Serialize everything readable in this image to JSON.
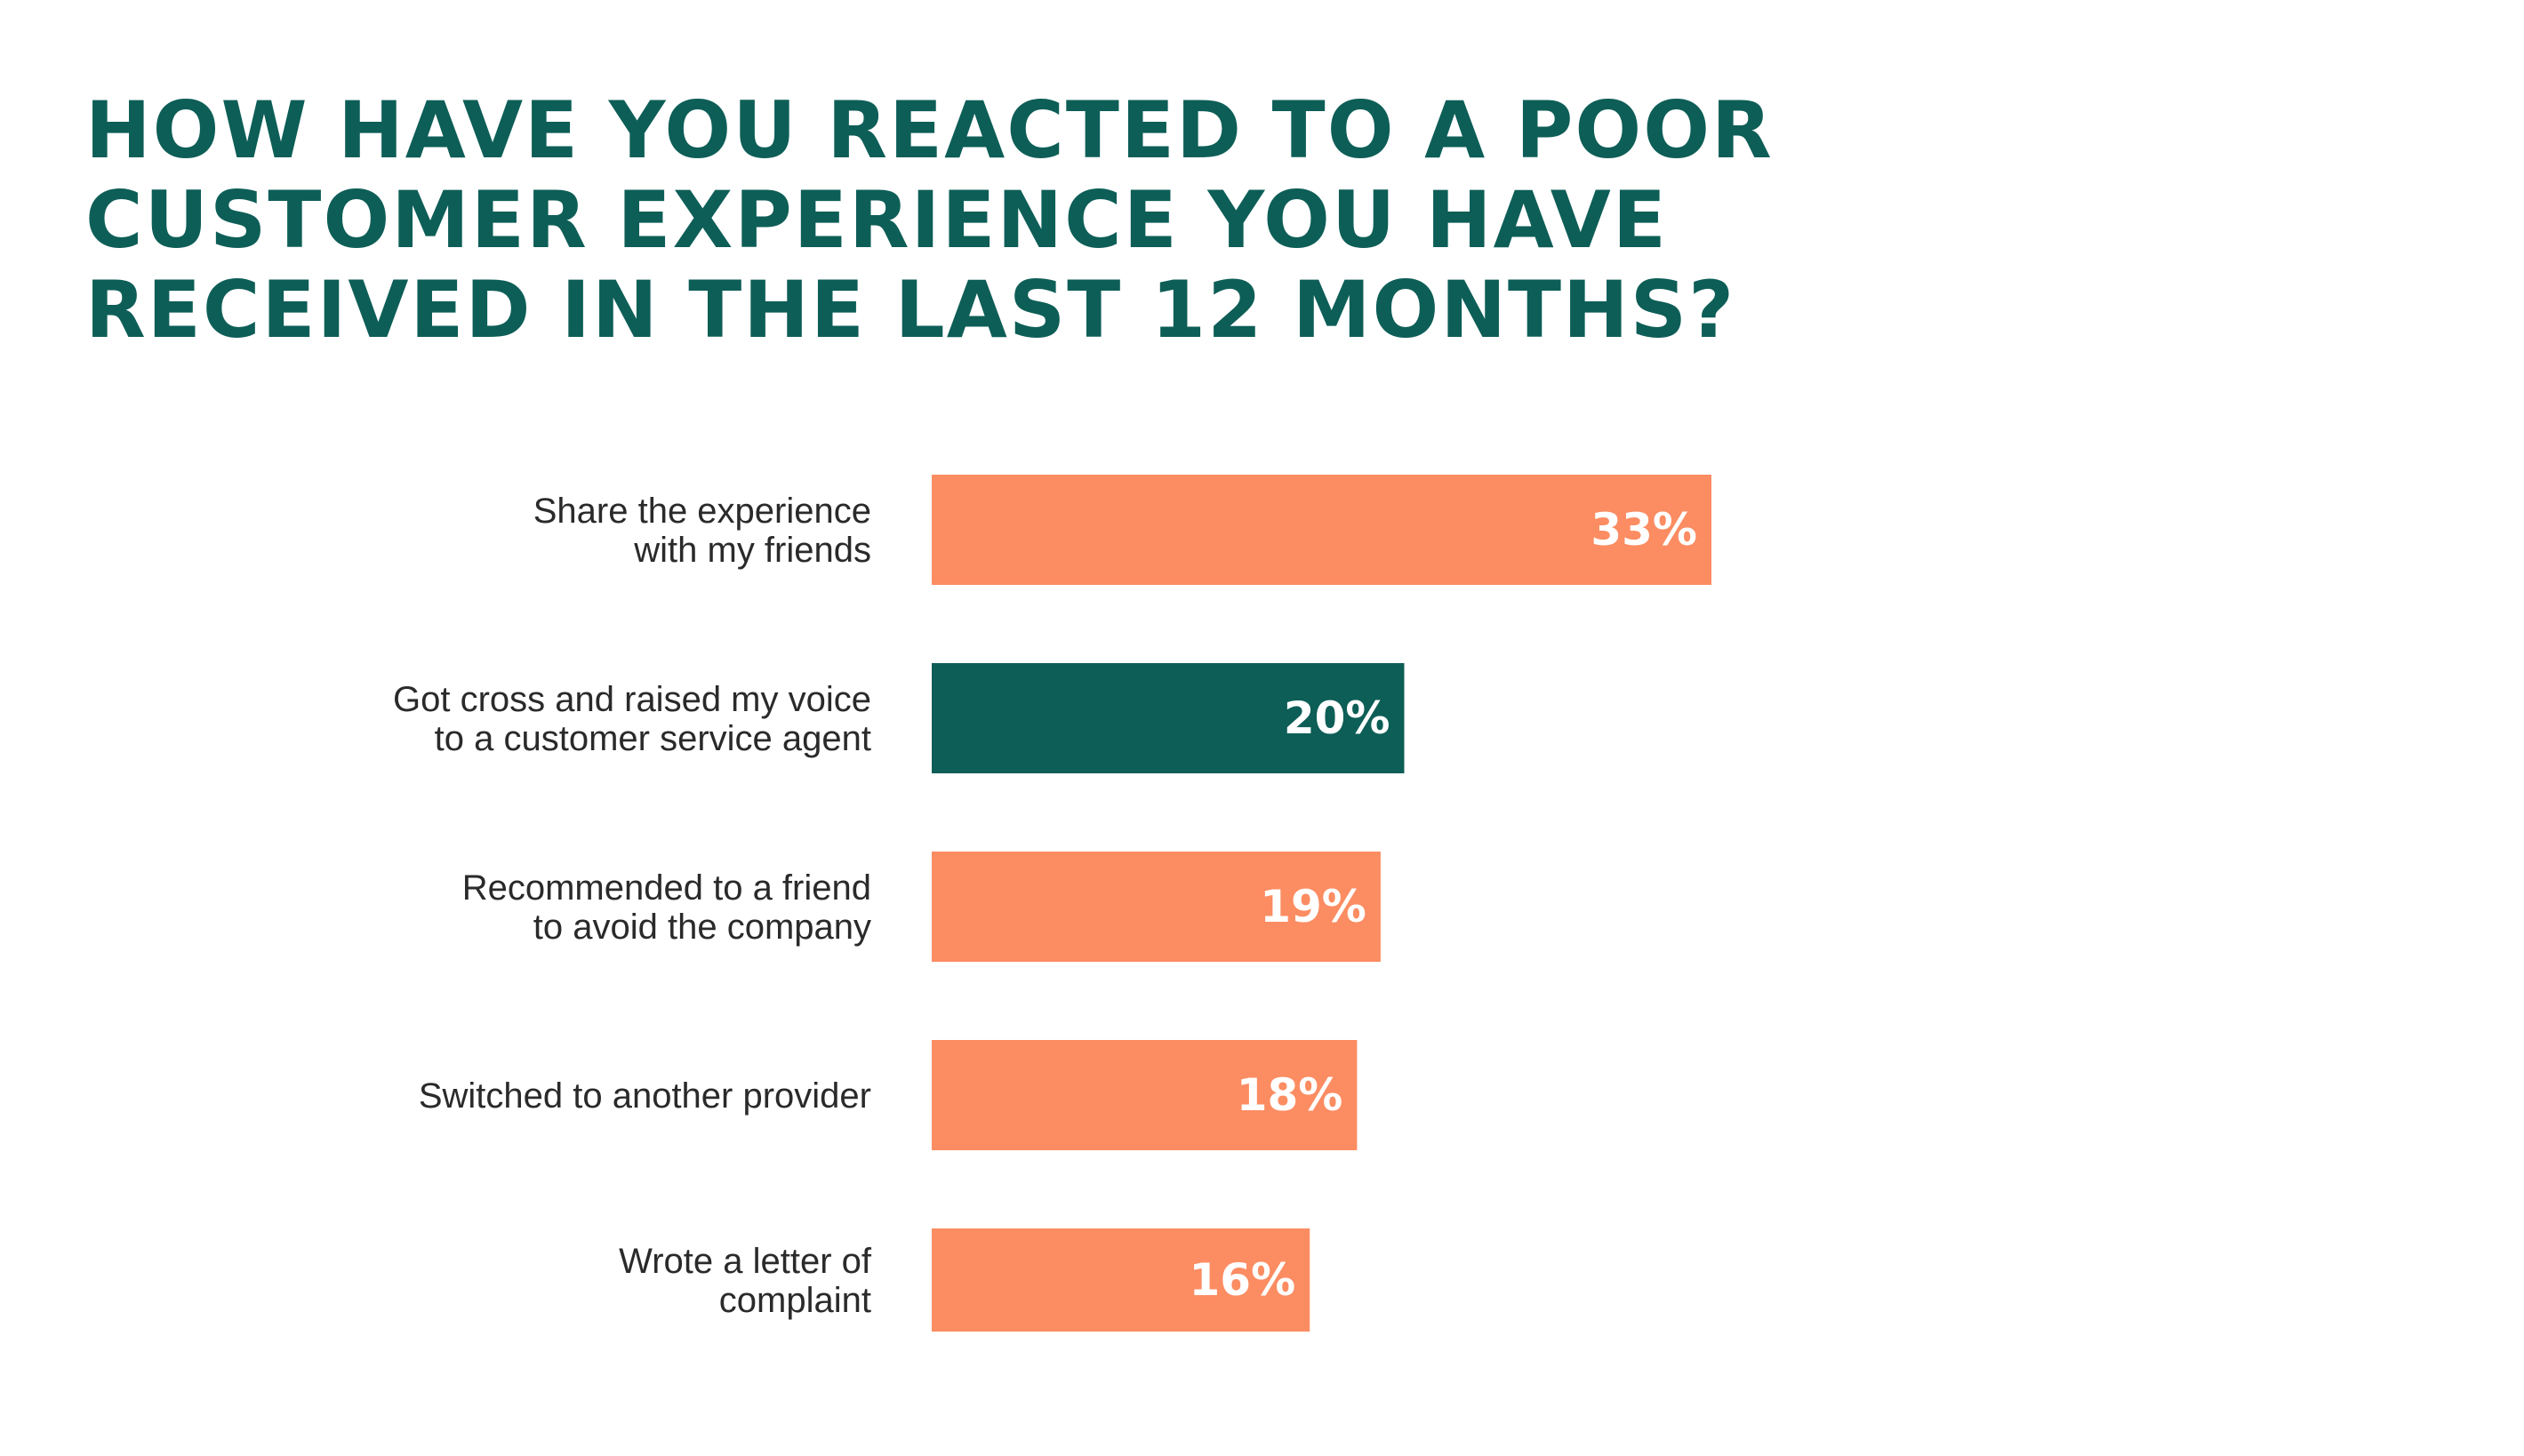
{
  "chart_data": {
    "type": "bar",
    "orientation": "horizontal",
    "title_lines": [
      "HOW HAVE YOU REACTED TO A POOR",
      "CUSTOMER EXPERIENCE YOU HAVE",
      "RECEIVED IN THE LAST 12 MONTHS?"
    ],
    "categories": [
      [
        "Share the experience",
        "with my friends"
      ],
      [
        "Got cross and raised my voice",
        "to a customer service agent"
      ],
      [
        "Recommended to a friend",
        "to avoid the company"
      ],
      [
        "Switched to another provider"
      ],
      [
        "Wrote a letter of",
        "complaint"
      ]
    ],
    "values": [
      33,
      20,
      19,
      18,
      16
    ],
    "value_labels": [
      "33%",
      "20%",
      "19%",
      "18%",
      "16%"
    ],
    "highlight_index": 1,
    "colors": {
      "bar": "#fc8c62",
      "highlight": "#0d5e57",
      "title": "#0d5e57",
      "label": "#2a2a2a",
      "value_text": "#ffffff"
    },
    "grid": false,
    "legend": "none",
    "xlim": [
      0,
      33
    ]
  }
}
